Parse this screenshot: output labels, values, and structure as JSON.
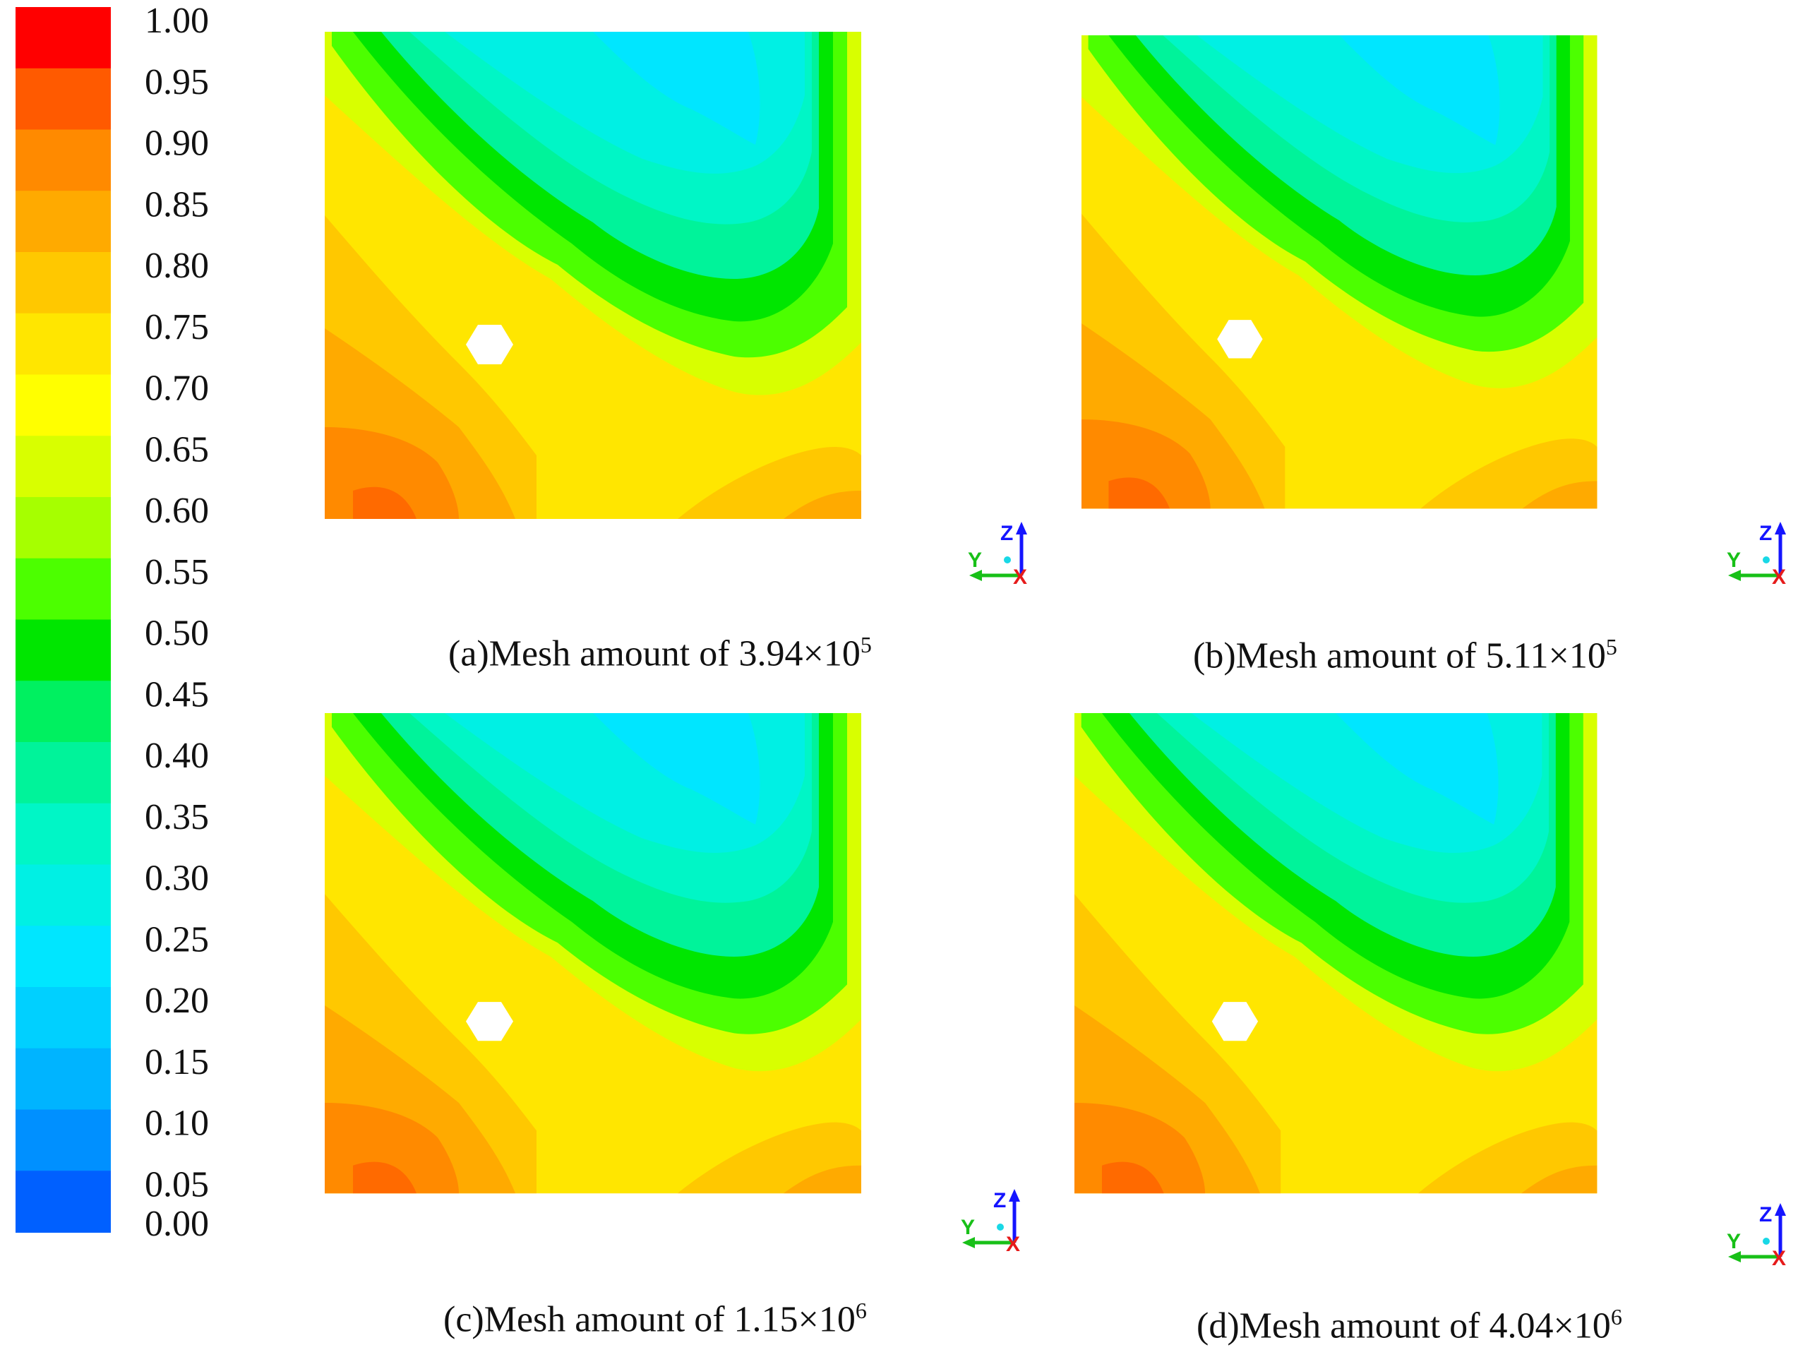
{
  "legend": {
    "labels": [
      "1.00",
      "0.95",
      "0.90",
      "0.85",
      "0.80",
      "0.75",
      "0.70",
      "0.65",
      "0.60",
      "0.55",
      "0.50",
      "0.45",
      "0.40",
      "0.35",
      "0.30",
      "0.25",
      "0.20",
      "0.15",
      "0.10",
      "0.05",
      "0.00"
    ],
    "colors": [
      "#ff0000",
      "#ff5a00",
      "#ff8a00",
      "#ffaa00",
      "#ffc800",
      "#ffe600",
      "#ffff00",
      "#d8ff00",
      "#a6ff00",
      "#4cff00",
      "#00e600",
      "#00f060",
      "#00f39a",
      "#00f6c6",
      "#00f0e4",
      "#00e6ff",
      "#00d0ff",
      "#00b4ff",
      "#0090ff",
      "#0060ff",
      "#0000ff"
    ]
  },
  "panels": [
    {
      "caption_prefix": "(a)Mesh amount of 3.94×10",
      "caption_exp": "5"
    },
    {
      "caption_prefix": "(b)Mesh amount of 5.11×10",
      "caption_exp": "5"
    },
    {
      "caption_prefix": "(c)Mesh amount of 1.15×10",
      "caption_exp": "6"
    },
    {
      "caption_prefix": "(d)Mesh amount of 4.04×10",
      "caption_exp": "6"
    }
  ],
  "axes": {
    "z": "Z",
    "y": "Y",
    "x": "X"
  }
}
